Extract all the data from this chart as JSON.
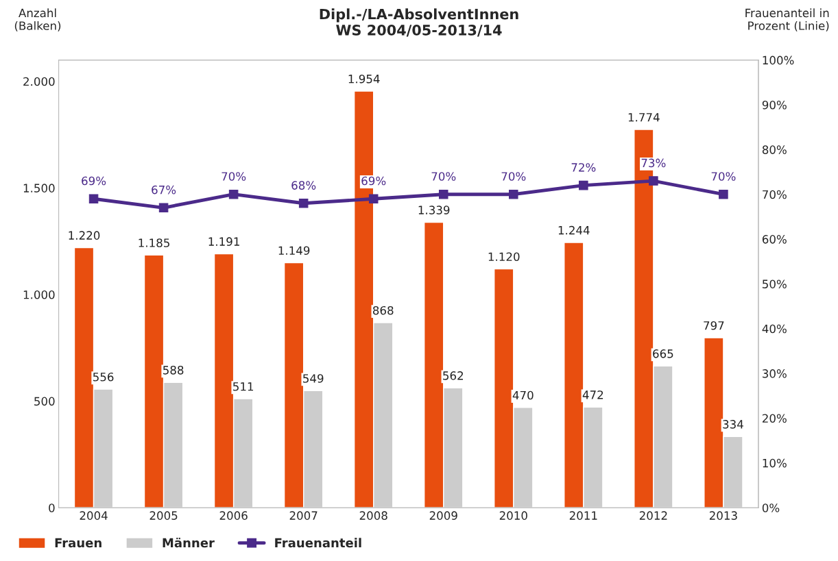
{
  "chart_data": {
    "type": "bar",
    "title": "Dipl.-/LA-AbsolventInnen\nWS 2004/05-2013/14",
    "ylabel": "Anzahl\n(Balken)",
    "y2label": "Frauenanteil in\nProzent (Linie)",
    "categories": [
      "2004",
      "2005",
      "2006",
      "2007",
      "2008",
      "2009",
      "2010",
      "2011",
      "2012",
      "2013"
    ],
    "series": [
      {
        "name": "Frauen",
        "color": "#e84e0f",
        "values": [
          1220,
          1185,
          1191,
          1149,
          1954,
          1339,
          1120,
          1244,
          1774,
          797
        ],
        "value_labels": [
          "1.220",
          "1.185",
          "1.191",
          "1.149",
          "1.954",
          "1.339",
          "1.120",
          "1.244",
          "1.774",
          "797"
        ]
      },
      {
        "name": "Männer",
        "color": "#cccccc",
        "values": [
          556,
          588,
          511,
          549,
          868,
          562,
          470,
          472,
          665,
          334
        ],
        "value_labels": [
          "556",
          "588",
          "511",
          "549",
          "868",
          "562",
          "470",
          "472",
          "665",
          "334"
        ]
      },
      {
        "name": "Frauenanteil",
        "type": "line",
        "axis": "y2",
        "color": "#4b2a8a",
        "marker": "square",
        "values": [
          69,
          67,
          70,
          68,
          69,
          70,
          70,
          72,
          73,
          70
        ],
        "value_labels": [
          "69%",
          "67%",
          "70%",
          "68%",
          "69%",
          "70%",
          "70%",
          "72%",
          "73%",
          "70%"
        ]
      }
    ],
    "ylim": [
      0,
      2100
    ],
    "yticks": [
      {
        "value": 0,
        "label": "0"
      },
      {
        "value": 500,
        "label": "500"
      },
      {
        "value": 1000,
        "label": "1.000"
      },
      {
        "value": 1500,
        "label": "1.500"
      },
      {
        "value": 2000,
        "label": "2.000"
      }
    ],
    "y2lim": [
      0,
      100
    ],
    "y2ticks": [
      {
        "value": 0,
        "label": "0%"
      },
      {
        "value": 10,
        "label": "10%"
      },
      {
        "value": 20,
        "label": "20%"
      },
      {
        "value": 30,
        "label": "30%"
      },
      {
        "value": 40,
        "label": "40%"
      },
      {
        "value": 50,
        "label": "50%"
      },
      {
        "value": 60,
        "label": "60%"
      },
      {
        "value": 70,
        "label": "70%"
      },
      {
        "value": 80,
        "label": "80%"
      },
      {
        "value": 90,
        "label": "90%"
      },
      {
        "value": 100,
        "label": "100%"
      }
    ],
    "legend": "bottom",
    "grid": false
  }
}
